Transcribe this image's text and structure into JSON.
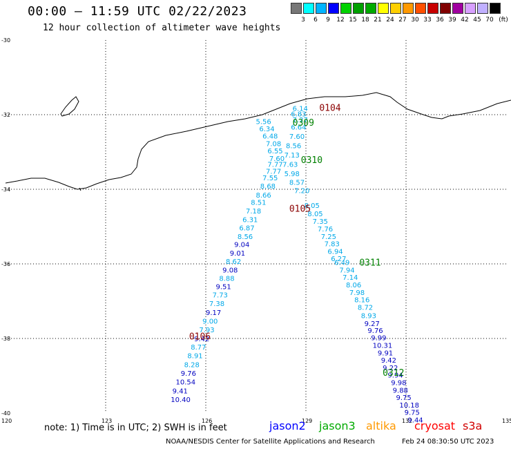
{
  "title": "00:00 – 11:59 UTC 02/22/2023",
  "subtitle": "12 hour collection of altimeter wave heights",
  "scale": {
    "unit": "(ft)",
    "colors": [
      "#777777",
      "#00ffff",
      "#00b4ff",
      "#0000ff",
      "#00d200",
      "#00a000",
      "#00aa00",
      "#ffff00",
      "#ffd000",
      "#ff9900",
      "#ff5000",
      "#c80000",
      "#800000",
      "#a000a0",
      "#d8a0ff",
      "#c0b0ff",
      "#000000"
    ],
    "ticks": [
      "3",
      "6",
      "9",
      "12",
      "15",
      "18",
      "21",
      "24",
      "27",
      "30",
      "33",
      "36",
      "39",
      "42",
      "45",
      "70"
    ]
  },
  "axes": {
    "lon_ticks": [
      "120",
      "123",
      "126",
      "129",
      "132",
      "135"
    ],
    "lat_ticks": [
      "-30",
      "-32",
      "-34",
      "-36",
      "-38",
      "-40"
    ]
  },
  "passes": [
    {
      "label": "0104",
      "color": "#8b0000",
      "lon": 129.4,
      "lat": -31.9
    },
    {
      "label": "0309",
      "color": "#008000",
      "lon": 128.6,
      "lat": -32.3
    },
    {
      "label": "0310",
      "color": "#008000",
      "lon": 128.85,
      "lat": -33.3
    },
    {
      "label": "0105",
      "color": "#8b0000",
      "lon": 128.5,
      "lat": -34.6
    },
    {
      "label": "0311",
      "color": "#008000",
      "lon": 130.6,
      "lat": -36.05
    },
    {
      "label": "0106",
      "color": "#8b0000",
      "lon": 125.5,
      "lat": -38.03
    },
    {
      "label": "0312",
      "color": "#008000",
      "lon": 131.3,
      "lat": -39.0
    }
  ],
  "track_a": {
    "color_light": "#00a8e8",
    "color_dark": "#0000c0",
    "points": [
      {
        "v": "5.56",
        "lon": 127.5,
        "lat": -32.25,
        "c": "L"
      },
      {
        "v": "6.34",
        "lon": 127.6,
        "lat": -32.44,
        "c": "L"
      },
      {
        "v": "6.48",
        "lon": 127.7,
        "lat": -32.64,
        "c": "L"
      },
      {
        "v": "7.08",
        "lon": 127.8,
        "lat": -32.84,
        "c": "L"
      },
      {
        "v": "6.55",
        "lon": 127.85,
        "lat": -33.04,
        "c": "L"
      },
      {
        "v": "7.60",
        "lon": 127.9,
        "lat": -33.24,
        "c": "L"
      },
      {
        "v": "7.77",
        "lon": 127.85,
        "lat": -33.4,
        "c": "L"
      },
      {
        "v": "7.77",
        "lon": 127.8,
        "lat": -33.58,
        "c": "L"
      },
      {
        "v": "7.55",
        "lon": 127.7,
        "lat": -33.76,
        "c": "L"
      },
      {
        "v": "8.68",
        "lon": 127.63,
        "lat": -33.98,
        "c": "L"
      },
      {
        "v": "8.66",
        "lon": 127.5,
        "lat": -34.22,
        "c": "L"
      },
      {
        "v": "8.51",
        "lon": 127.35,
        "lat": -34.42,
        "c": "L"
      },
      {
        "v": "7.18",
        "lon": 127.2,
        "lat": -34.65,
        "c": "L"
      },
      {
        "v": "6.31",
        "lon": 127.1,
        "lat": -34.88,
        "c": "L"
      },
      {
        "v": "6.87",
        "lon": 127.0,
        "lat": -35.1,
        "c": "L"
      },
      {
        "v": "8.56",
        "lon": 126.95,
        "lat": -35.33,
        "c": "L"
      },
      {
        "v": "9.04",
        "lon": 126.85,
        "lat": -35.55,
        "c": "D"
      },
      {
        "v": "9.01",
        "lon": 126.72,
        "lat": -35.78,
        "c": "D"
      },
      {
        "v": "8.62",
        "lon": 126.6,
        "lat": -36.0,
        "c": "L"
      },
      {
        "v": "9.08",
        "lon": 126.5,
        "lat": -36.23,
        "c": "D"
      },
      {
        "v": "8.88",
        "lon": 126.4,
        "lat": -36.45,
        "c": "L"
      },
      {
        "v": "9.51",
        "lon": 126.3,
        "lat": -36.68,
        "c": "D"
      },
      {
        "v": "7.73",
        "lon": 126.2,
        "lat": -36.9,
        "c": "L"
      },
      {
        "v": "7.38",
        "lon": 126.1,
        "lat": -37.13,
        "c": "L"
      },
      {
        "v": "9.17",
        "lon": 126.0,
        "lat": -37.37,
        "c": "D"
      },
      {
        "v": "9.00",
        "lon": 125.9,
        "lat": -37.6,
        "c": "L"
      },
      {
        "v": "7.93",
        "lon": 125.8,
        "lat": -37.83,
        "c": "L"
      },
      {
        "v": "9.42",
        "lon": 125.65,
        "lat": -38.07,
        "c": "D"
      },
      {
        "v": "8.77",
        "lon": 125.55,
        "lat": -38.3,
        "c": "L"
      },
      {
        "v": "8.91",
        "lon": 125.45,
        "lat": -38.53,
        "c": "L"
      },
      {
        "v": "8.28",
        "lon": 125.35,
        "lat": -38.77,
        "c": "L"
      },
      {
        "v": "9.76",
        "lon": 125.25,
        "lat": -39.0,
        "c": "D"
      },
      {
        "v": "10.54",
        "lon": 125.1,
        "lat": -39.23,
        "c": "D"
      },
      {
        "v": "9.41",
        "lon": 125.0,
        "lat": -39.47,
        "c": "D"
      },
      {
        "v": "10.40",
        "lon": 124.95,
        "lat": -39.7,
        "c": "D"
      }
    ]
  },
  "track_b": {
    "color_light": "#00a8e8",
    "color_dark": "#0000c0",
    "points": [
      {
        "v": "6.14",
        "lon": 128.6,
        "lat": -31.9,
        "c": "L"
      },
      {
        "v": "6.83",
        "lon": 128.55,
        "lat": -32.05,
        "c": "L"
      },
      {
        "v": "7.27",
        "lon": 128.6,
        "lat": -32.2,
        "c": "L"
      },
      {
        "v": "6.64",
        "lon": 128.55,
        "lat": -32.4,
        "c": "L"
      },
      {
        "v": "7.60",
        "lon": 128.5,
        "lat": -32.65,
        "c": "L"
      },
      {
        "v": "8.56",
        "lon": 128.4,
        "lat": -32.9,
        "c": "L"
      },
      {
        "v": "7.13",
        "lon": 128.35,
        "lat": -33.15,
        "c": "L"
      },
      {
        "v": "7.63",
        "lon": 128.3,
        "lat": -33.4,
        "c": "L"
      },
      {
        "v": "5.98",
        "lon": 128.35,
        "lat": -33.65,
        "c": "L"
      },
      {
        "v": "8.57",
        "lon": 128.5,
        "lat": -33.88,
        "c": "L"
      },
      {
        "v": "7.20",
        "lon": 128.65,
        "lat": -34.1,
        "c": "L"
      },
      {
        "v": "8.05",
        "lon": 128.95,
        "lat": -34.5,
        "c": "L"
      },
      {
        "v": "8.05",
        "lon": 129.05,
        "lat": -34.72,
        "c": "L"
      },
      {
        "v": "7.35",
        "lon": 129.2,
        "lat": -34.93,
        "c": "L"
      },
      {
        "v": "7.76",
        "lon": 129.35,
        "lat": -35.13,
        "c": "L"
      },
      {
        "v": "7.25",
        "lon": 129.45,
        "lat": -35.33,
        "c": "L"
      },
      {
        "v": "7.83",
        "lon": 129.55,
        "lat": -35.53,
        "c": "L"
      },
      {
        "v": "6.94",
        "lon": 129.65,
        "lat": -35.73,
        "c": "L"
      },
      {
        "v": "6.27",
        "lon": 129.75,
        "lat": -35.93,
        "c": "L"
      },
      {
        "v": "6.49",
        "lon": 129.85,
        "lat": -36.03,
        "c": "L"
      },
      {
        "v": "7.94",
        "lon": 130.0,
        "lat": -36.23,
        "c": "L"
      },
      {
        "v": "7.14",
        "lon": 130.1,
        "lat": -36.43,
        "c": "L"
      },
      {
        "v": "8.06",
        "lon": 130.2,
        "lat": -36.63,
        "c": "L"
      },
      {
        "v": "7.98",
        "lon": 130.3,
        "lat": -36.83,
        "c": "L"
      },
      {
        "v": "8.16",
        "lon": 130.45,
        "lat": -37.03,
        "c": "L"
      },
      {
        "v": "8.72",
        "lon": 130.55,
        "lat": -37.23,
        "c": "L"
      },
      {
        "v": "8.93",
        "lon": 130.65,
        "lat": -37.45,
        "c": "L"
      },
      {
        "v": "9.27",
        "lon": 130.75,
        "lat": -37.67,
        "c": "D"
      },
      {
        "v": "9.76",
        "lon": 130.85,
        "lat": -37.85,
        "c": "D"
      },
      {
        "v": "9.99",
        "lon": 130.95,
        "lat": -38.05,
        "c": "D"
      },
      {
        "v": "10.31",
        "lon": 131.0,
        "lat": -38.25,
        "c": "D"
      },
      {
        "v": "9.91",
        "lon": 131.15,
        "lat": -38.45,
        "c": "D"
      },
      {
        "v": "9.42",
        "lon": 131.25,
        "lat": -38.65,
        "c": "D"
      },
      {
        "v": "9.22",
        "lon": 131.3,
        "lat": -38.85,
        "c": "D"
      },
      {
        "v": "9.94",
        "lon": 131.45,
        "lat": -39.05,
        "c": "D"
      },
      {
        "v": "9.98",
        "lon": 131.55,
        "lat": -39.25,
        "c": "D"
      },
      {
        "v": "9.88",
        "lon": 131.6,
        "lat": -39.45,
        "c": "D"
      },
      {
        "v": "9.75",
        "lon": 131.7,
        "lat": -39.65,
        "c": "D"
      },
      {
        "v": "10.18",
        "lon": 131.8,
        "lat": -39.85,
        "c": "D"
      },
      {
        "v": "9.75",
        "lon": 131.95,
        "lat": -40.05,
        "c": "D"
      },
      {
        "v": "9.44",
        "lon": 132.05,
        "lat": -40.25,
        "c": "D"
      }
    ]
  },
  "note": "note:  1) Time is in UTC; 2) SWH is in feet",
  "legend": [
    {
      "label": "jason2",
      "color": "#0000ff"
    },
    {
      "label": "jason3",
      "color": "#00aa00"
    },
    {
      "label": "altika",
      "color": "#ff9900"
    },
    {
      "label": "cryosat",
      "color": "#ff0000"
    },
    {
      "label": "s3a",
      "color": "#d00000"
    }
  ],
  "credit": "NOAA/NESDIS Center for Satellite Applications and Research",
  "generated": "Feb 24 08:30:50 UTC 2023"
}
